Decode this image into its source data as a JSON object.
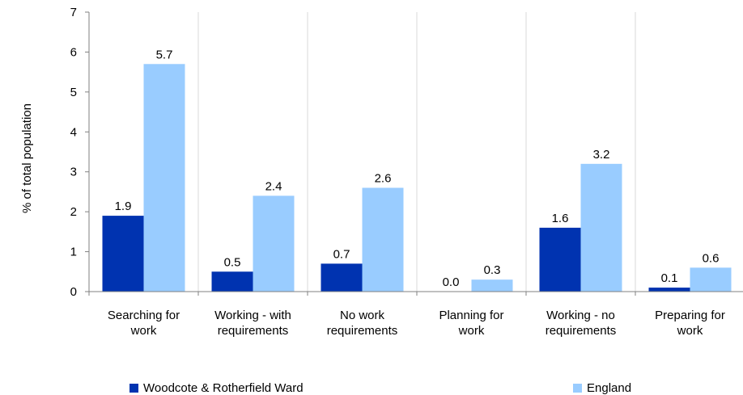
{
  "chart_data": {
    "type": "bar",
    "title": "",
    "xlabel": "",
    "ylabel": "% of total population",
    "ylim": [
      0,
      7
    ],
    "yticks": [
      0,
      1,
      2,
      3,
      4,
      5,
      6,
      7
    ],
    "grid": "vertical separators",
    "legend": "bottom",
    "categories": [
      [
        "Searching for",
        "work"
      ],
      [
        "Working - with",
        "requirements"
      ],
      [
        "No work",
        "requirements"
      ],
      [
        "Planning for",
        "work"
      ],
      [
        "Working - no",
        "requirements"
      ],
      [
        "Preparing for",
        "work"
      ]
    ],
    "series": [
      {
        "name": "Woodcote & Rotherfield Ward",
        "color": "#0033b0",
        "values": [
          1.9,
          0.5,
          0.7,
          0.0,
          1.6,
          0.1
        ],
        "labels": [
          "1.9",
          "0.5",
          "0.7",
          "0.0",
          "1.6",
          "0.1"
        ]
      },
      {
        "name": "England",
        "color": "#99ccff",
        "values": [
          5.7,
          2.4,
          2.6,
          0.3,
          3.2,
          0.6
        ],
        "labels": [
          "5.7",
          "2.4",
          "2.6",
          "0.3",
          "3.2",
          "0.6"
        ]
      }
    ]
  }
}
